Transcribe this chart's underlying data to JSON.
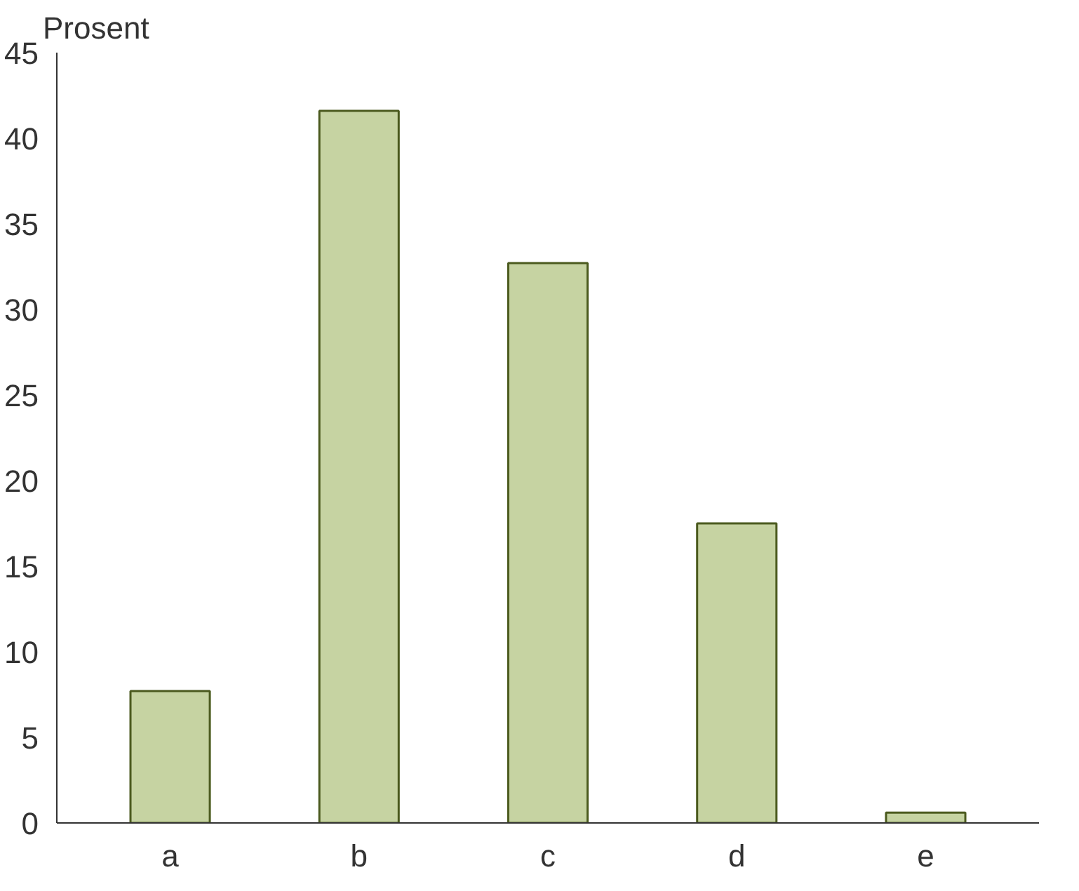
{
  "chart_data": {
    "type": "bar",
    "ylabel": "Prosent",
    "categories": [
      "a",
      "b",
      "c",
      "d",
      "e"
    ],
    "values": [
      7.7,
      41.6,
      32.7,
      17.5,
      0.6
    ],
    "color": "#c6d3a2",
    "ylim": [
      0,
      45
    ],
    "yticks": [
      0,
      5,
      10,
      15,
      20,
      25,
      30,
      35,
      40,
      45
    ],
    "grid": false
  }
}
